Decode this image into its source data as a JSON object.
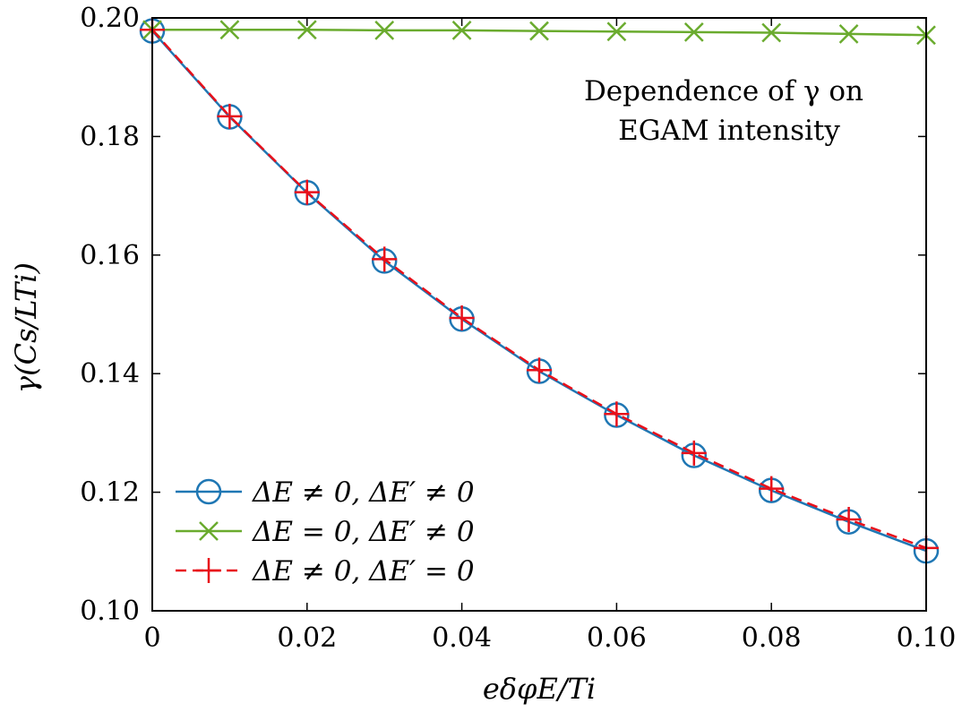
{
  "chart_data": {
    "type": "line",
    "title": "",
    "annotation": [
      "Dependence of γ on",
      "EGAM intensity"
    ],
    "xlabel": "eδφE/Ti",
    "ylabel": "γ(Cs/LTi)",
    "xlim": [
      0,
      0.1
    ],
    "ylim": [
      0.1,
      0.2
    ],
    "x": [
      0,
      0.01,
      0.02,
      0.03,
      0.04,
      0.05,
      0.06,
      0.07,
      0.08,
      0.09,
      0.1
    ],
    "xtick_values": [
      0,
      0.02,
      0.04,
      0.06,
      0.08,
      0.1
    ],
    "xtick_labels": [
      "0",
      "0.02",
      "0.04",
      "0.06",
      "0.08",
      "0.10"
    ],
    "ytick_values": [
      0.1,
      0.12,
      0.14,
      0.16,
      0.18,
      0.2
    ],
    "ytick_labels": [
      "0.10",
      "0.12",
      "0.14",
      "0.16",
      "0.18",
      "0.20"
    ],
    "legend_position": "bottom-left",
    "series": [
      {
        "name": "ΔE ≠ 0, ΔE′ ≠ 0",
        "color": "#1f77b4",
        "marker": "circle",
        "dash": "solid",
        "values": [
          0.1978,
          0.1833,
          0.1705,
          0.159,
          0.1492,
          0.1404,
          0.133,
          0.1262,
          0.1203,
          0.115,
          0.1101
        ]
      },
      {
        "name": "ΔE = 0, ΔE′ ≠ 0",
        "color": "#6aab2e",
        "marker": "x",
        "dash": "solid",
        "values": [
          0.198,
          0.198,
          0.198,
          0.1979,
          0.1979,
          0.1978,
          0.1977,
          0.1976,
          0.1975,
          0.1973,
          0.1971
        ]
      },
      {
        "name": "ΔE ≠ 0, ΔE′ = 0",
        "color": "#e8101a",
        "marker": "plus",
        "dash": "dashed",
        "values": [
          0.198,
          0.1834,
          0.1706,
          0.1593,
          0.1494,
          0.1406,
          0.1332,
          0.1266,
          0.1206,
          0.1154,
          0.1106
        ]
      }
    ]
  }
}
